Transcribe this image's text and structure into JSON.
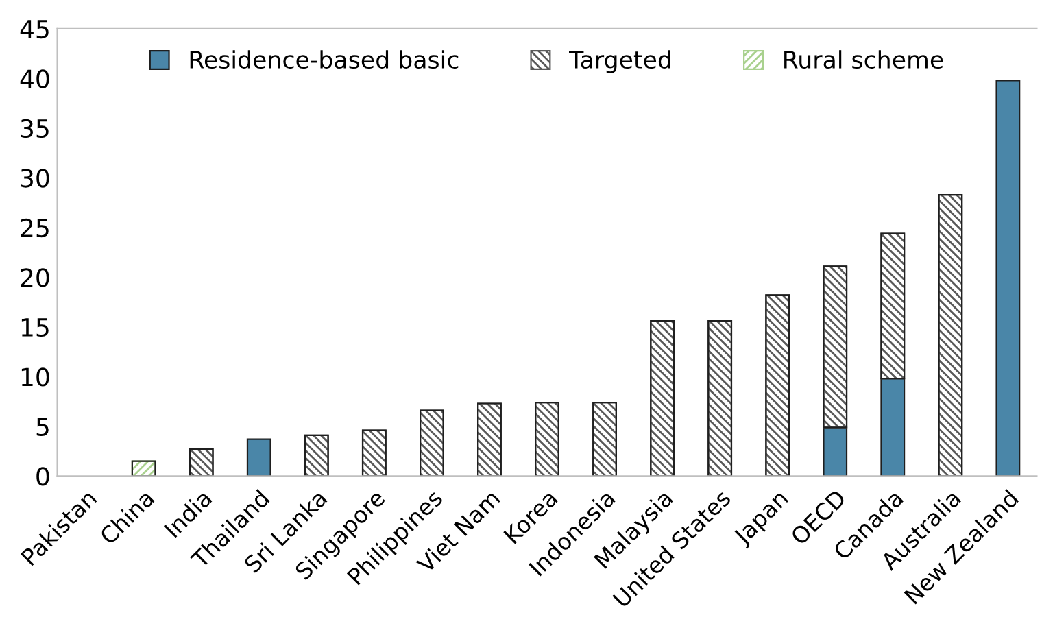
{
  "chart_data": {
    "type": "bar",
    "stacked": true,
    "categories": [
      "Pakistan",
      "China",
      "India",
      "Thailand",
      "Sri Lanka",
      "Singapore",
      "Philippines",
      "Viet Nam",
      "Korea",
      "Indonesia",
      "Malaysia",
      "United States",
      "Japan",
      "OECD",
      "Canada",
      "Australia",
      "New Zealand"
    ],
    "series": [
      {
        "name": "Residence-based basic",
        "color": "#4a86a8",
        "values": [
          null,
          null,
          null,
          3.7,
          null,
          null,
          null,
          null,
          null,
          null,
          null,
          null,
          null,
          4.9,
          9.8,
          null,
          39.8
        ]
      },
      {
        "name": "Targeted",
        "color": "#595959",
        "values": [
          null,
          null,
          2.7,
          null,
          4.1,
          4.6,
          6.6,
          7.3,
          7.4,
          7.4,
          15.6,
          15.6,
          18.2,
          16.2,
          14.6,
          28.3,
          null
        ]
      },
      {
        "name": "Rural scheme",
        "color": "#a9d18e",
        "values": [
          null,
          1.5,
          null,
          null,
          null,
          null,
          null,
          null,
          null,
          null,
          null,
          null,
          null,
          null,
          null,
          null,
          null
        ]
      }
    ],
    "ylim": [
      0,
      45
    ],
    "yticks": [
      0,
      5,
      10,
      15,
      20,
      25,
      30,
      35,
      40,
      45
    ],
    "grid": false,
    "legend": "top"
  }
}
